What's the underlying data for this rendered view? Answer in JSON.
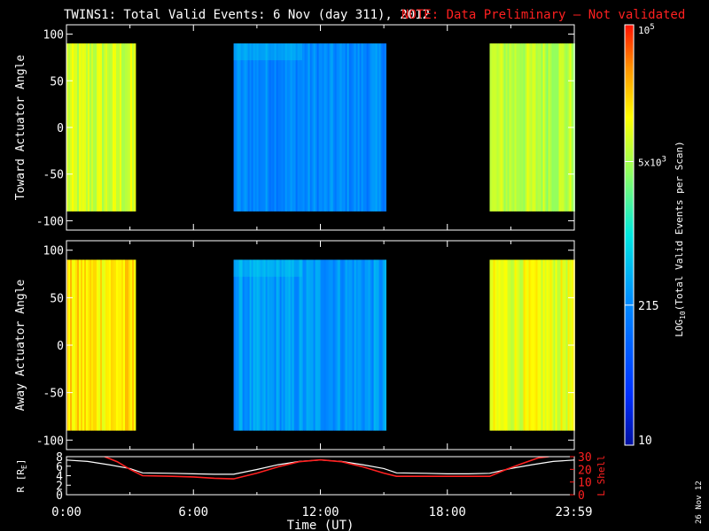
{
  "header": {
    "title": "TWINS1: Total Valid Events:  6 Nov (day 311), 2012",
    "note": "NOTE: Data Preliminary – Not validated",
    "note_color": "#ff2020"
  },
  "side_date": "26 Nov 12",
  "colorbar": {
    "label": "LOG10(Total Valid Events per Scan)",
    "label_parts": [
      "LOG",
      "10",
      "(Total Valid Events per Scan)"
    ],
    "ticks": [
      {
        "value": 10,
        "label": "10",
        "parts": null
      },
      {
        "value": 215,
        "label": "215",
        "parts": null
      },
      {
        "value": 5000,
        "label": "5x10^3",
        "parts": [
          "5x10",
          "3"
        ]
      },
      {
        "value": 100000,
        "label": "10^5",
        "parts": [
          "10",
          "5"
        ]
      }
    ],
    "range": [
      10,
      100000
    ],
    "scale": "log"
  },
  "chart_data": [
    {
      "type": "heatmap",
      "ylabel": "Toward Actuator Angle",
      "xlim": [
        0,
        24
      ],
      "ylim": [
        -110,
        110
      ],
      "yticks": [
        100,
        50,
        0,
        -50,
        -100
      ],
      "data_yrange": [
        -90,
        90
      ],
      "data_blocks": [
        {
          "start": 0.0,
          "end": 3.2,
          "level": 0.72
        },
        {
          "start": 7.9,
          "end": 15.1,
          "level": 0.33
        },
        {
          "start": 20.0,
          "end": 24.0,
          "level": 0.7
        }
      ]
    },
    {
      "type": "heatmap",
      "ylabel": "Away Actuator Angle",
      "xlim": [
        0,
        24
      ],
      "ylim": [
        -110,
        110
      ],
      "yticks": [
        100,
        50,
        0,
        -50,
        -100
      ],
      "data_yrange": [
        -90,
        90
      ],
      "data_blocks": [
        {
          "start": 0.0,
          "end": 3.2,
          "level": 0.8
        },
        {
          "start": 7.9,
          "end": 15.1,
          "level": 0.36
        },
        {
          "start": 20.0,
          "end": 24.0,
          "level": 0.75
        }
      ]
    },
    {
      "type": "line",
      "xlabel": "Time (UT)",
      "ylabel": "R [RE]",
      "ylabel_parts": [
        "R [R",
        "E",
        "]"
      ],
      "y2label": "L Shell",
      "xlim": [
        0,
        24
      ],
      "ylim": [
        0,
        8
      ],
      "yticks": [
        0,
        2,
        4,
        6,
        8
      ],
      "y2lim": [
        0,
        30
      ],
      "y2ticks": [
        0,
        10,
        20,
        30
      ],
      "xticks": [
        {
          "value": 0,
          "label": "0:00"
        },
        {
          "value": 6,
          "label": "6:00"
        },
        {
          "value": 12,
          "label": "12:00"
        },
        {
          "value": 18,
          "label": "18:00"
        },
        {
          "value": 23.98,
          "label": "23:59"
        }
      ],
      "series": [
        {
          "color": "#ffffff",
          "axis": "left",
          "x": [
            0,
            1,
            2,
            3,
            3.6,
            5,
            6,
            7,
            7.9,
            9,
            10,
            11,
            12,
            13,
            14,
            15,
            15.6,
            17,
            18,
            19,
            20,
            21,
            22,
            23,
            24
          ],
          "y": [
            7.3,
            7.0,
            6.3,
            5.5,
            4.6,
            4.5,
            4.4,
            4.3,
            4.3,
            5.3,
            6.3,
            7.0,
            7.3,
            7.0,
            6.3,
            5.5,
            4.6,
            4.5,
            4.4,
            4.4,
            4.5,
            5.5,
            6.3,
            7.0,
            7.3
          ]
        },
        {
          "color": "#ff2020",
          "axis": "right",
          "x": [
            1.8,
            2.4,
            3.0,
            3.6,
            5,
            6,
            7,
            7.9,
            9,
            10,
            11,
            12,
            13,
            14,
            15,
            15.6,
            17,
            18,
            19,
            20,
            20.8,
            21.6,
            22.3,
            22.8
          ],
          "y": [
            30,
            26,
            20,
            15,
            14.5,
            14,
            13,
            12.5,
            17,
            22,
            26,
            27.5,
            26,
            22,
            17,
            14.5,
            14.5,
            14.5,
            14.5,
            14.5,
            20,
            25,
            29,
            30
          ]
        }
      ]
    }
  ]
}
